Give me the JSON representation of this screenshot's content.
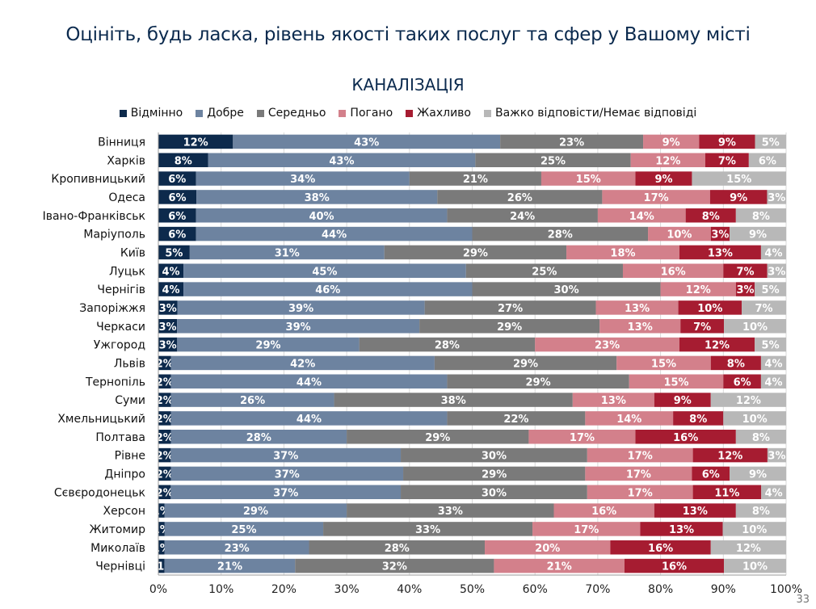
{
  "title": "Оцініть, будь ласка, рівень якості таких послуг та сфер у Вашому місті",
  "page_number": "33",
  "chart_data": {
    "type": "bar",
    "orientation": "horizontal",
    "stacked": true,
    "title": "КАНАЛІЗАЦІЯ",
    "xlim": [
      0,
      100
    ],
    "x_ticks": [
      "0%",
      "10%",
      "20%",
      "30%",
      "40%",
      "50%",
      "60%",
      "70%",
      "80%",
      "90%",
      "100%"
    ],
    "legend_position": "top",
    "grid": true,
    "categories": [
      "Вінниця",
      "Харків",
      "Кропивницький",
      "Одеса",
      "Івано-Франківськ",
      "Маріуполь",
      "Київ",
      "Луцьк",
      "Чернігів",
      "Запоріжжя",
      "Черкаси",
      "Ужгород",
      "Львів",
      "Тернопіль",
      "Суми",
      "Хмельницький",
      "Полтава",
      "Рівне",
      "Дніпро",
      "Сєвєродонецьк",
      "Херсон",
      "Житомир",
      "Миколаїв",
      "Чернівці"
    ],
    "series": [
      {
        "name": "Відмінно",
        "color": "#0d2a4c",
        "values": [
          12,
          8,
          6,
          6,
          6,
          6,
          5,
          4,
          4,
          3,
          3,
          3,
          2,
          2,
          2,
          2,
          2,
          2,
          2,
          2,
          1,
          1,
          1,
          1
        ],
        "labels": [
          "12%",
          "8%",
          "6%",
          "6%",
          "6%",
          "6%",
          "5%",
          "4%",
          "4%",
          "3%",
          "3%",
          "3%",
          "2%",
          "2%",
          "2%",
          "2%",
          "2%",
          "2%",
          "2%",
          "2%",
          "1%",
          "1%",
          "1%",
          "<1%"
        ]
      },
      {
        "name": "Добре",
        "color": "#6d83a0",
        "values": [
          43,
          43,
          34,
          38,
          40,
          44,
          31,
          45,
          46,
          39,
          39,
          29,
          42,
          44,
          26,
          44,
          28,
          37,
          37,
          37,
          29,
          25,
          23,
          21
        ],
        "labels": [
          "43%",
          "43%",
          "34%",
          "38%",
          "40%",
          "44%",
          "31%",
          "45%",
          "46%",
          "39%",
          "39%",
          "29%",
          "42%",
          "44%",
          "26%",
          "44%",
          "28%",
          "37%",
          "37%",
          "37%",
          "29%",
          "25%",
          "23%",
          "21%"
        ]
      },
      {
        "name": "Середньо",
        "color": "#7a7a7a",
        "values": [
          23,
          25,
          21,
          26,
          24,
          28,
          29,
          25,
          30,
          27,
          29,
          28,
          29,
          29,
          38,
          22,
          29,
          30,
          29,
          30,
          33,
          33,
          28,
          32
        ],
        "labels": [
          "23%",
          "25%",
          "21%",
          "26%",
          "24%",
          "28%",
          "29%",
          "25%",
          "30%",
          "27%",
          "29%",
          "28%",
          "29%",
          "29%",
          "38%",
          "22%",
          "29%",
          "30%",
          "29%",
          "30%",
          "33%",
          "33%",
          "28%",
          "32%"
        ]
      },
      {
        "name": "Погано",
        "color": "#d3808b",
        "values": [
          9,
          12,
          15,
          17,
          14,
          10,
          18,
          16,
          12,
          13,
          13,
          23,
          15,
          15,
          13,
          14,
          17,
          17,
          17,
          17,
          16,
          17,
          20,
          21
        ],
        "labels": [
          "9%",
          "12%",
          "15%",
          "17%",
          "14%",
          "10%",
          "18%",
          "16%",
          "12%",
          "13%",
          "13%",
          "23%",
          "15%",
          "15%",
          "13%",
          "14%",
          "17%",
          "17%",
          "17%",
          "17%",
          "16%",
          "17%",
          "20%",
          "21%"
        ]
      },
      {
        "name": "Жахливо",
        "color": "#a61c31",
        "values": [
          9,
          7,
          9,
          9,
          8,
          3,
          13,
          7,
          3,
          10,
          7,
          12,
          8,
          6,
          9,
          8,
          16,
          12,
          6,
          11,
          13,
          13,
          16,
          16
        ],
        "labels": [
          "9%",
          "7%",
          "9%",
          "9%",
          "8%",
          "3%",
          "13%",
          "7%",
          "3%",
          "10%",
          "7%",
          "12%",
          "8%",
          "6%",
          "9%",
          "8%",
          "16%",
          "12%",
          "6%",
          "11%",
          "13%",
          "13%",
          "16%",
          "16%"
        ]
      },
      {
        "name": "Важко відповісти/Немає відповіді",
        "color": "#b8b8b8",
        "values": [
          5,
          6,
          15,
          3,
          8,
          9,
          4,
          3,
          5,
          7,
          10,
          5,
          4,
          4,
          12,
          10,
          8,
          3,
          9,
          4,
          8,
          10,
          12,
          10
        ],
        "labels": [
          "5%",
          "6%",
          "15%",
          "3%",
          "8%",
          "9%",
          "4%",
          "3%",
          "5%",
          "7%",
          "10%",
          "5%",
          "4%",
          "4%",
          "12%",
          "10%",
          "8%",
          "3%",
          "9%",
          "4%",
          "8%",
          "10%",
          "12%",
          "10%"
        ]
      }
    ]
  }
}
